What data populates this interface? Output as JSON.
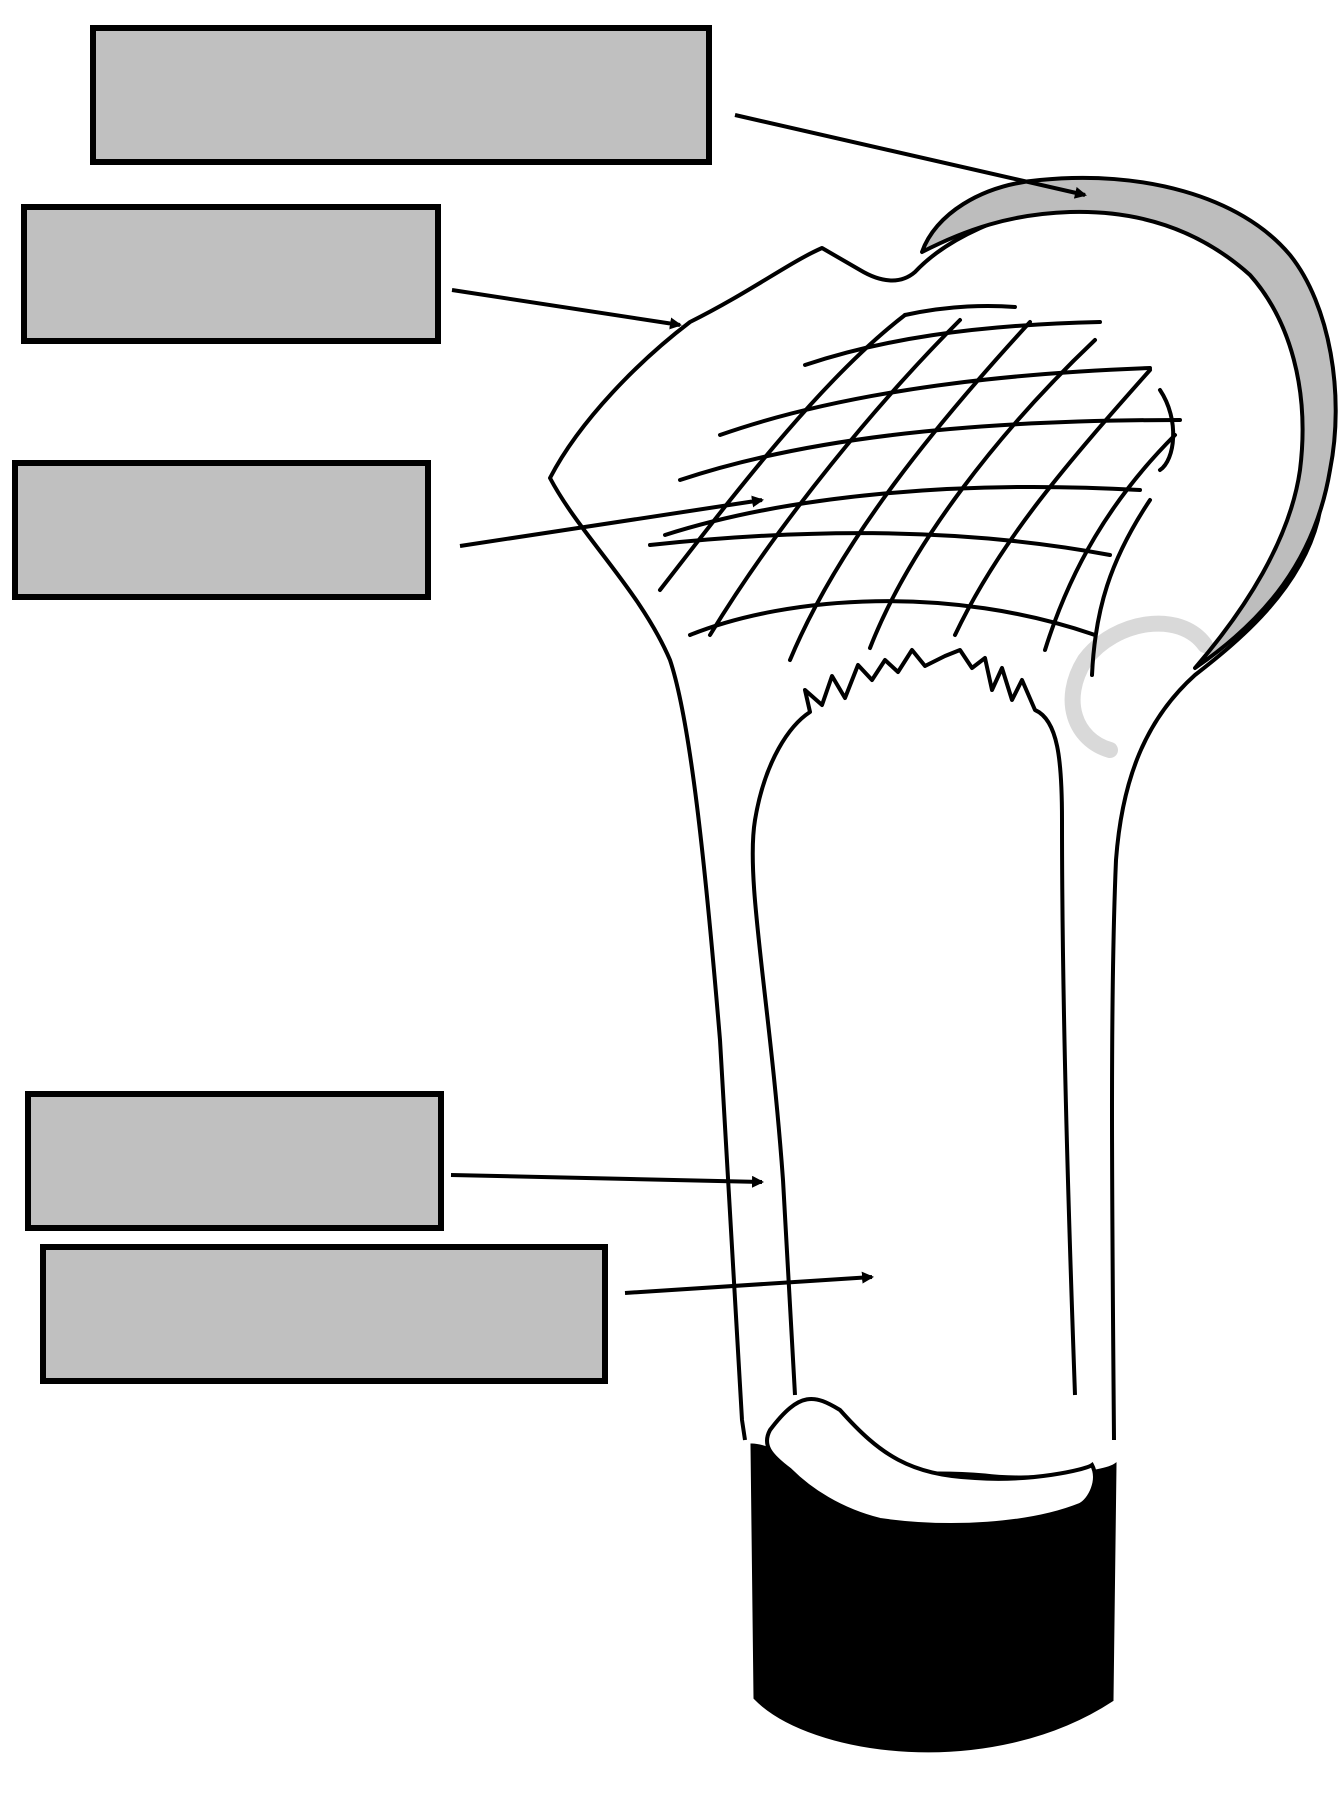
{
  "diagram": {
    "labels": [
      {
        "id": "label-articular-cartilage",
        "text": ""
      },
      {
        "id": "label-epiphysis",
        "text": ""
      },
      {
        "id": "label-spongy-bone",
        "text": ""
      },
      {
        "id": "label-compact-bone",
        "text": ""
      },
      {
        "id": "label-medullary-cavity",
        "text": ""
      }
    ],
    "colors": {
      "label_fill": "#c0c0c0",
      "outline": "#000000",
      "cartilage_fill": "#bdbdbd",
      "cut_section_fill": "#000000",
      "watermark": "#d9d9d9"
    }
  }
}
